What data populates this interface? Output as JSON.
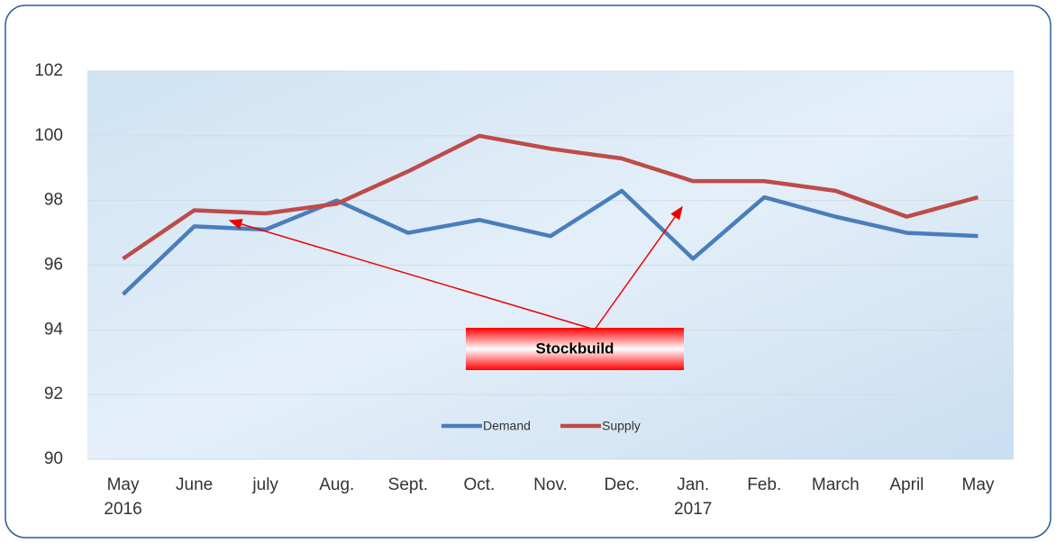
{
  "chart_data": {
    "type": "line",
    "categories": [
      "May 2016",
      "June",
      "july",
      "Aug.",
      "Sept.",
      "Oct.",
      "Nov.",
      "Dec.",
      "Jan. 2017",
      "Feb.",
      "March",
      "April",
      "May"
    ],
    "series": [
      {
        "name": "Demand",
        "color": "#4a7ebb",
        "values": [
          95.1,
          97.2,
          97.1,
          98.0,
          97.0,
          97.4,
          96.9,
          98.3,
          96.2,
          98.1,
          97.5,
          97.0,
          96.9
        ]
      },
      {
        "name": "Supply",
        "color": "#be4b48",
        "values": [
          96.2,
          97.7,
          97.6,
          97.9,
          98.9,
          100.0,
          99.6,
          99.3,
          98.6,
          98.6,
          98.3,
          97.5,
          98.1
        ]
      }
    ],
    "ylim": [
      90,
      102
    ],
    "yticks": [
      90,
      92,
      94,
      96,
      98,
      100,
      102
    ],
    "grid": true,
    "legend": "bottom",
    "annotation": "Stockbuild"
  }
}
